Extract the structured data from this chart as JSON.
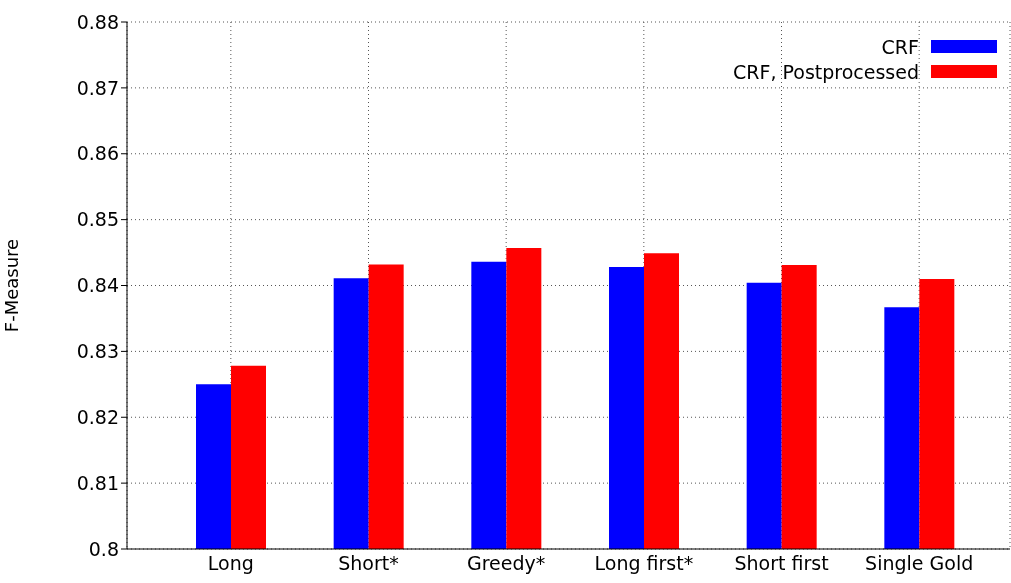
{
  "chart_data": {
    "type": "bar",
    "ylabel": "F-Measure",
    "categories": [
      "Long",
      "Short*",
      "Greedy*",
      "Long first*",
      "Short first",
      "Single Gold"
    ],
    "series": [
      {
        "name": "CRF",
        "color": "#0000ff",
        "values": [
          0.825,
          0.8411,
          0.8436,
          0.8428,
          0.8404,
          0.8367
        ]
      },
      {
        "name": "CRF, Postprocessed",
        "color": "#ff0000",
        "values": [
          0.8278,
          0.8432,
          0.8457,
          0.8449,
          0.8431,
          0.841
        ]
      }
    ],
    "ylim": [
      0.8,
      0.88
    ],
    "yticks": [
      0.8,
      0.81,
      0.82,
      0.83,
      0.84,
      0.85,
      0.86,
      0.87,
      0.88
    ],
    "grid": true,
    "legend": "top right"
  }
}
